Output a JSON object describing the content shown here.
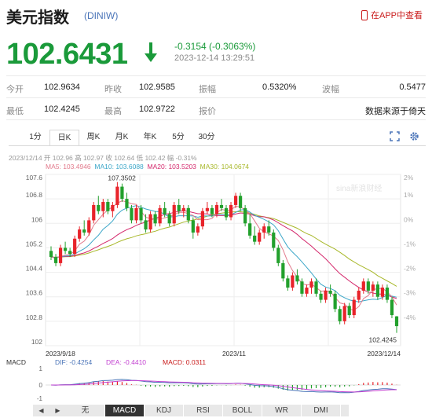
{
  "header": {
    "title": "美元指数",
    "code": "(DINIW)",
    "app_link": "在APP中查看",
    "price": "102.6431",
    "change": "-0.3154 (-0.3063%)",
    "time": "2023-12-14 13:29:51"
  },
  "stats": [
    [
      {
        "label": "今开",
        "value": "102.9634"
      },
      {
        "label": "昨收",
        "value": "102.9585"
      },
      {
        "label": "振幅",
        "value": "0.5320%"
      },
      {
        "label": "波幅",
        "value": "0.5477"
      }
    ],
    [
      {
        "label": "最低",
        "value": "102.4245"
      },
      {
        "label": "最高",
        "value": "102.9722"
      },
      {
        "label": "报价",
        "value": ""
      },
      {
        "label": "",
        "value": "数据来源于倚天"
      }
    ]
  ],
  "tabs": [
    "1分",
    "日K",
    "周K",
    "月K",
    "年K",
    "5分",
    "30分"
  ],
  "active_tab": "日K",
  "info_line": {
    "date": "2023/12/14",
    "text": "开 102.96 高 102.97 收 102.64 低 102.42 幅 -0.31%"
  },
  "ma_line": [
    {
      "label": "MA5: 103.4946",
      "color": "#e27a8c"
    },
    {
      "label": "MA10: 103.6088",
      "color": "#3ba6c8"
    },
    {
      "label": "MA20: 103.5203",
      "color": "#d4286c"
    },
    {
      "label": "MA30: 104.0674",
      "color": "#a8b82a"
    }
  ],
  "watermark": "sina新浪财经",
  "colors": {
    "up": "#e8232a",
    "down": "#22a02c",
    "ma5": "#e27a8c",
    "ma10": "#3ba6c8",
    "ma20": "#d4286c",
    "ma30": "#a8b82a"
  },
  "chart_data": {
    "type": "candlestick",
    "y_ticks": [
      "107.6",
      "106.8",
      "106",
      "105.2",
      "104.4",
      "103.6",
      "102.8",
      "102"
    ],
    "y_right_ticks": [
      "2%",
      "1%",
      "0%",
      "-1%",
      "-2%",
      "-3%",
      "-4%",
      ""
    ],
    "ylim": [
      102.0,
      107.6
    ],
    "x_labels": [
      "2023/9/18",
      "2023/11",
      "2023/12/14"
    ],
    "high_label": "107.3502",
    "low_label": "102.4245",
    "candles": [
      [
        105.1,
        105.25,
        104.8,
        104.9
      ],
      [
        104.9,
        105.0,
        104.6,
        104.7
      ],
      [
        104.7,
        105.3,
        104.6,
        105.2
      ],
      [
        105.2,
        105.4,
        105.0,
        105.1
      ],
      [
        105.1,
        105.2,
        104.9,
        105.0
      ],
      [
        105.0,
        105.6,
        104.9,
        105.5
      ],
      [
        105.5,
        105.9,
        105.4,
        105.8
      ],
      [
        105.8,
        106.1,
        105.6,
        105.7
      ],
      [
        105.7,
        106.2,
        105.6,
        106.1
      ],
      [
        106.1,
        106.7,
        106.0,
        106.6
      ],
      [
        106.6,
        106.9,
        106.3,
        106.4
      ],
      [
        106.4,
        106.8,
        106.2,
        106.7
      ],
      [
        106.7,
        106.8,
        106.3,
        106.4
      ],
      [
        106.4,
        106.7,
        106.2,
        106.6
      ],
      [
        106.6,
        107.35,
        106.5,
        107.2
      ],
      [
        107.2,
        107.3,
        106.7,
        106.8
      ],
      [
        106.8,
        107.0,
        106.4,
        106.5
      ],
      [
        106.5,
        106.6,
        106.0,
        106.1
      ],
      [
        106.1,
        106.6,
        106.0,
        106.5
      ],
      [
        106.5,
        106.6,
        106.0,
        106.1
      ],
      [
        106.1,
        106.3,
        105.7,
        105.8
      ],
      [
        105.8,
        106.4,
        105.7,
        106.3
      ],
      [
        106.3,
        106.4,
        105.9,
        106.0
      ],
      [
        106.0,
        106.6,
        105.9,
        106.5
      ],
      [
        106.5,
        106.7,
        106.2,
        106.3
      ],
      [
        106.3,
        106.4,
        105.9,
        106.0
      ],
      [
        106.0,
        106.7,
        105.9,
        106.6
      ],
      [
        106.6,
        106.8,
        106.3,
        106.4
      ],
      [
        106.4,
        106.6,
        106.2,
        106.5
      ],
      [
        106.5,
        106.6,
        106.0,
        106.1
      ],
      [
        106.1,
        106.2,
        105.5,
        105.7
      ],
      [
        105.7,
        106.0,
        105.6,
        105.9
      ],
      [
        105.9,
        106.5,
        105.8,
        106.4
      ],
      [
        106.4,
        106.7,
        106.3,
        106.5
      ],
      [
        106.5,
        106.6,
        106.2,
        106.3
      ],
      [
        106.3,
        106.7,
        106.2,
        106.6
      ],
      [
        106.6,
        106.8,
        106.4,
        106.5
      ],
      [
        106.5,
        106.6,
        106.1,
        106.2
      ],
      [
        106.2,
        106.7,
        106.1,
        106.6
      ],
      [
        106.6,
        107.0,
        106.5,
        106.9
      ],
      [
        106.9,
        107.0,
        106.4,
        106.5
      ],
      [
        106.5,
        106.6,
        105.9,
        106.0
      ],
      [
        106.0,
        106.3,
        105.5,
        105.6
      ],
      [
        105.6,
        105.9,
        105.3,
        105.4
      ],
      [
        105.4,
        105.8,
        105.3,
        105.7
      ],
      [
        105.7,
        106.0,
        105.5,
        105.9
      ],
      [
        105.9,
        106.1,
        105.6,
        105.7
      ],
      [
        105.7,
        105.8,
        105.1,
        105.2
      ],
      [
        105.2,
        105.3,
        104.6,
        104.7
      ],
      [
        104.7,
        104.8,
        104.1,
        104.2
      ],
      [
        104.2,
        104.3,
        103.8,
        103.9
      ],
      [
        103.9,
        104.4,
        103.8,
        104.3
      ],
      [
        104.3,
        104.5,
        104.0,
        104.1
      ],
      [
        104.1,
        104.2,
        103.6,
        103.7
      ],
      [
        103.7,
        104.0,
        103.6,
        103.9
      ],
      [
        103.9,
        104.2,
        103.7,
        104.1
      ],
      [
        104.1,
        104.2,
        103.6,
        103.7
      ],
      [
        103.7,
        103.8,
        103.4,
        103.5
      ],
      [
        103.5,
        103.9,
        103.4,
        103.8
      ],
      [
        103.8,
        104.0,
        103.6,
        103.7
      ],
      [
        103.7,
        103.8,
        103.1,
        103.2
      ],
      [
        103.2,
        103.3,
        102.7,
        102.8
      ],
      [
        102.8,
        103.4,
        102.7,
        103.3
      ],
      [
        103.3,
        103.4,
        102.9,
        103.0
      ],
      [
        103.0,
        103.6,
        102.9,
        103.5
      ],
      [
        103.5,
        103.9,
        103.4,
        103.8
      ],
      [
        103.8,
        104.2,
        103.7,
        104.1
      ],
      [
        104.1,
        104.2,
        103.7,
        103.8
      ],
      [
        103.8,
        104.1,
        103.6,
        104.0
      ],
      [
        104.0,
        104.1,
        103.5,
        103.6
      ],
      [
        103.6,
        104.0,
        103.5,
        103.9
      ],
      [
        103.9,
        104.0,
        103.4,
        103.5
      ],
      [
        103.5,
        103.6,
        102.9,
        103.0
      ],
      [
        102.96,
        102.97,
        102.42,
        102.64
      ]
    ],
    "macd": {
      "label": "MACD",
      "dif": "DIF: -0.4254",
      "dea": "DEA: -0.4410",
      "macd": "MACD: 0.0311",
      "ticks": [
        "1",
        "0",
        "-1"
      ]
    }
  },
  "indicators": [
    "无",
    "MACD",
    "KDJ",
    "RSI",
    "BOLL",
    "WR",
    "DMI"
  ],
  "active_indicator": "MACD"
}
